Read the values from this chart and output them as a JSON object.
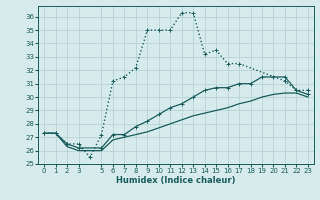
{
  "xlabel": "Humidex (Indice chaleur)",
  "xlim": [
    -0.5,
    23.5
  ],
  "ylim": [
    25,
    36.8
  ],
  "yticks": [
    25,
    26,
    27,
    28,
    29,
    30,
    31,
    32,
    33,
    34,
    35,
    36
  ],
  "xticks": [
    0,
    1,
    2,
    3,
    5,
    6,
    7,
    8,
    9,
    10,
    11,
    12,
    13,
    14,
    15,
    16,
    17,
    18,
    19,
    20,
    21,
    22,
    23
  ],
  "bg_color": "#d6ecec",
  "line_color": "#1a5c5c",
  "grid_color": "#b0d0d0",
  "lines": [
    {
      "x": [
        0,
        1,
        2,
        3,
        4,
        5,
        6,
        7,
        8,
        9,
        10,
        11,
        12,
        13,
        14,
        15,
        16,
        17,
        21,
        22,
        23
      ],
      "y": [
        27.3,
        27.3,
        26.5,
        26.5,
        25.5,
        27.2,
        31.2,
        31.5,
        32.2,
        35.0,
        35.0,
        35.0,
        36.3,
        36.3,
        33.2,
        33.5,
        32.5,
        32.5,
        31.2,
        30.5,
        30.5
      ],
      "marker": true,
      "linestyle": ":",
      "linewidth": 1.0
    },
    {
      "x": [
        0,
        1,
        2,
        3,
        5,
        6,
        7,
        8,
        9,
        10,
        11,
        12,
        13,
        14,
        15,
        16,
        17,
        18,
        19,
        20,
        21,
        22,
        23
      ],
      "y": [
        27.3,
        27.3,
        26.5,
        26.2,
        26.2,
        27.2,
        27.2,
        27.8,
        28.2,
        28.7,
        29.2,
        29.5,
        30.0,
        30.5,
        30.7,
        30.7,
        31.0,
        31.0,
        31.5,
        31.5,
        31.5,
        30.5,
        30.2
      ],
      "marker": true,
      "linestyle": "-",
      "linewidth": 0.9
    },
    {
      "x": [
        0,
        1,
        2,
        3,
        5,
        6,
        7,
        8,
        9,
        10,
        11,
        12,
        13,
        14,
        15,
        16,
        17,
        18,
        19,
        20,
        21,
        22,
        23
      ],
      "y": [
        27.3,
        27.3,
        26.3,
        26.0,
        26.0,
        26.8,
        27.0,
        27.2,
        27.4,
        27.7,
        28.0,
        28.3,
        28.6,
        28.8,
        29.0,
        29.2,
        29.5,
        29.7,
        30.0,
        30.2,
        30.3,
        30.3,
        30.0
      ],
      "marker": false,
      "linestyle": "-",
      "linewidth": 0.9
    }
  ]
}
